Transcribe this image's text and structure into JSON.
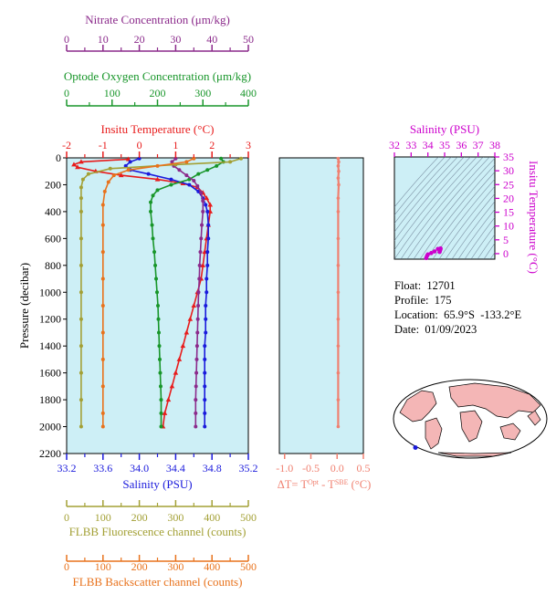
{
  "colors": {
    "nitrate": "#8b2a8b",
    "oxygen": "#18962a",
    "temperature": "#e81c1c",
    "salinity": "#1a1adc",
    "fluorescence": "#a3a035",
    "backscatter": "#e8721c",
    "salinity_top": "#cc00cc",
    "plot_bg": "#cdeff6",
    "delta_t": "#f08070"
  },
  "info": {
    "float": "Float:  12701",
    "profile": "Profile:  175",
    "location": "Location:  65.9°S  -133.2°E",
    "date": "Date:  01/09/2023"
  },
  "map": {
    "marker_lon": -133.2,
    "marker_lat": -65.9
  },
  "chart_data": [
    {
      "type": "line",
      "title": "",
      "ylabel": "Pressure (decibar)",
      "y_ticks": [
        0,
        200,
        400,
        600,
        800,
        1000,
        1200,
        1400,
        1600,
        1800,
        2000,
        2200
      ],
      "ylim": [
        2200,
        0
      ],
      "axes": {
        "nitrate": {
          "label": "Nitrate Concentration (μm/kg)",
          "range": [
            0,
            50
          ],
          "ticks": [
            0,
            10,
            20,
            30,
            40,
            50
          ]
        },
        "oxygen": {
          "label": "Optode Oxygen Concentration (μm/kg)",
          "range": [
            0,
            400
          ],
          "ticks": [
            0,
            100,
            200,
            300,
            400
          ]
        },
        "temperature": {
          "label": "Insitu Temperature (°C)",
          "range": [
            -2,
            3
          ],
          "ticks": [
            -2,
            -1,
            0,
            1,
            2,
            3
          ]
        },
        "salinity": {
          "label": "Salinity (PSU)",
          "range": [
            33.2,
            35.2
          ],
          "ticks": [
            "33.2",
            "33.6",
            "34.0",
            "34.4",
            "34.8",
            "35.2"
          ]
        },
        "fluorescence": {
          "label": "FLBB Fluorescence channel (counts)",
          "range": [
            0,
            500
          ],
          "ticks": [
            0,
            100,
            200,
            300,
            400,
            500
          ]
        },
        "backscatter": {
          "label": "FLBB Backscatter channel (counts)",
          "range": [
            0,
            500
          ],
          "ticks": [
            0,
            100,
            200,
            300,
            400,
            500
          ]
        }
      },
      "series": [
        {
          "name": "temperature",
          "points": [
            [
              -0.3,
              10
            ],
            [
              -1.6,
              30
            ],
            [
              -1.8,
              50
            ],
            [
              -1.7,
              70
            ],
            [
              -1.2,
              100
            ],
            [
              -0.5,
              130
            ],
            [
              0.5,
              160
            ],
            [
              1.2,
              190
            ],
            [
              1.6,
              220
            ],
            [
              1.75,
              260
            ],
            [
              1.85,
              300
            ],
            [
              1.95,
              350
            ],
            [
              1.95,
              400
            ],
            [
              1.9,
              500
            ],
            [
              1.85,
              600
            ],
            [
              1.8,
              700
            ],
            [
              1.75,
              800
            ],
            [
              1.7,
              900
            ],
            [
              1.6,
              1000
            ],
            [
              1.5,
              1100
            ],
            [
              1.4,
              1200
            ],
            [
              1.3,
              1300
            ],
            [
              1.2,
              1400
            ],
            [
              1.1,
              1500
            ],
            [
              1.0,
              1600
            ],
            [
              0.9,
              1700
            ],
            [
              0.8,
              1800
            ],
            [
              0.7,
              1900
            ],
            [
              0.65,
              2000
            ]
          ]
        },
        {
          "name": "salinity",
          "points": [
            [
              34.0,
              5
            ],
            [
              33.9,
              30
            ],
            [
              33.85,
              60
            ],
            [
              33.9,
              90
            ],
            [
              34.1,
              120
            ],
            [
              34.35,
              160
            ],
            [
              34.55,
              200
            ],
            [
              34.65,
              250
            ],
            [
              34.7,
              300
            ],
            [
              34.73,
              350
            ],
            [
              34.75,
              400
            ],
            [
              34.76,
              500
            ],
            [
              34.76,
              600
            ],
            [
              34.75,
              700
            ],
            [
              34.75,
              800
            ],
            [
              34.74,
              900
            ],
            [
              34.74,
              1000
            ],
            [
              34.73,
              1100
            ],
            [
              34.73,
              1200
            ],
            [
              34.73,
              1300
            ],
            [
              34.72,
              1400
            ],
            [
              34.72,
              1500
            ],
            [
              34.72,
              1600
            ],
            [
              34.72,
              1700
            ],
            [
              34.72,
              1800
            ],
            [
              34.72,
              1900
            ],
            [
              34.72,
              2000
            ]
          ]
        },
        {
          "name": "oxygen",
          "points": [
            [
              340,
              5
            ],
            [
              345,
              30
            ],
            [
              330,
              60
            ],
            [
              310,
              90
            ],
            [
              290,
              120
            ],
            [
              270,
              160
            ],
            [
              230,
              200
            ],
            [
              200,
              240
            ],
            [
              190,
              280
            ],
            [
              185,
              330
            ],
            [
              185,
              400
            ],
            [
              188,
              500
            ],
            [
              190,
              600
            ],
            [
              193,
              700
            ],
            [
              195,
              800
            ],
            [
              197,
              900
            ],
            [
              199,
              1000
            ],
            [
              201,
              1100
            ],
            [
              202,
              1200
            ],
            [
              203,
              1300
            ],
            [
              204,
              1400
            ],
            [
              205,
              1500
            ],
            [
              206,
              1600
            ],
            [
              207,
              1700
            ],
            [
              208,
              1800
            ],
            [
              208,
              1900
            ],
            [
              208,
              2000
            ]
          ]
        },
        {
          "name": "nitrate",
          "points": [
            [
              30,
              5
            ],
            [
              29,
              30
            ],
            [
              29.5,
              60
            ],
            [
              31,
              90
            ],
            [
              33,
              130
            ],
            [
              35,
              170
            ],
            [
              36,
              210
            ],
            [
              37,
              260
            ],
            [
              37.5,
              320
            ],
            [
              37.5,
              400
            ],
            [
              37.2,
              500
            ],
            [
              37,
              600
            ],
            [
              36.8,
              700
            ],
            [
              36.6,
              800
            ],
            [
              36.5,
              900
            ],
            [
              36.3,
              1000
            ],
            [
              36.2,
              1100
            ],
            [
              36.1,
              1200
            ],
            [
              36,
              1300
            ],
            [
              35.9,
              1400
            ],
            [
              35.8,
              1500
            ],
            [
              35.7,
              1600
            ],
            [
              35.6,
              1700
            ],
            [
              35.5,
              1800
            ],
            [
              35.5,
              1900
            ],
            [
              35.5,
              2000
            ]
          ]
        },
        {
          "name": "fluorescence",
          "points": [
            [
              480,
              5
            ],
            [
              450,
              30
            ],
            [
              300,
              50
            ],
            [
              120,
              80
            ],
            [
              60,
              120
            ],
            [
              45,
              160
            ],
            [
              40,
              220
            ],
            [
              40,
              300
            ],
            [
              40,
              400
            ],
            [
              40,
              600
            ],
            [
              40,
              800
            ],
            [
              40,
              1000
            ],
            [
              40,
              1200
            ],
            [
              40,
              1400
            ],
            [
              40,
              1600
            ],
            [
              40,
              1800
            ],
            [
              40,
              2000
            ]
          ]
        },
        {
          "name": "backscatter",
          "points": [
            [
              350,
              5
            ],
            [
              330,
              30
            ],
            [
              250,
              60
            ],
            [
              170,
              90
            ],
            [
              130,
              130
            ],
            [
              115,
              180
            ],
            [
              105,
              250
            ],
            [
              100,
              350
            ],
            [
              100,
              500
            ],
            [
              100,
              700
            ],
            [
              100,
              900
            ],
            [
              100,
              1100
            ],
            [
              100,
              1300
            ],
            [
              100,
              1500
            ],
            [
              100,
              1700
            ],
            [
              100,
              1900
            ],
            [
              100,
              2000
            ]
          ]
        }
      ]
    },
    {
      "type": "line",
      "xlabel": "ΔT= T^Opt - T^SBE (°C)",
      "x_ticks": [
        "-1.0",
        "-0.5",
        "0.0",
        "0.5"
      ],
      "xlim": [
        -1.1,
        0.5
      ],
      "ylim": [
        2200,
        0
      ],
      "series": [
        {
          "name": "delta_t",
          "points": [
            [
              0.02,
              5
            ],
            [
              0.03,
              30
            ],
            [
              0.02,
              60
            ],
            [
              0.03,
              100
            ],
            [
              0.02,
              150
            ],
            [
              0.03,
              200
            ],
            [
              0.02,
              300
            ],
            [
              0.02,
              400
            ],
            [
              0.02,
              600
            ],
            [
              0.02,
              800
            ],
            [
              0.02,
              1000
            ],
            [
              0.02,
              1200
            ],
            [
              0.02,
              1400
            ],
            [
              0.02,
              1600
            ],
            [
              0.02,
              1800
            ],
            [
              0.02,
              2000
            ]
          ]
        }
      ]
    },
    {
      "type": "scatter",
      "xlabel": "Salinity (PSU)",
      "ylabel": "Insitu Temperature (°C)",
      "x_ticks": [
        32,
        33,
        34,
        35,
        36,
        37,
        38
      ],
      "y_ticks": [
        0,
        5,
        10,
        15,
        20,
        25,
        30,
        35
      ],
      "xlim": [
        32,
        38
      ],
      "ylim": [
        -2,
        35
      ],
      "points": [
        [
          34.7,
          0.6
        ],
        [
          34.72,
          1.0
        ],
        [
          34.75,
          1.5
        ],
        [
          34.76,
          1.9
        ],
        [
          34.6,
          1.7
        ],
        [
          34.4,
          0.8
        ],
        [
          34.2,
          0.2
        ],
        [
          33.95,
          -0.8
        ],
        [
          33.9,
          -1.6
        ],
        [
          34.0,
          -0.3
        ]
      ]
    }
  ]
}
